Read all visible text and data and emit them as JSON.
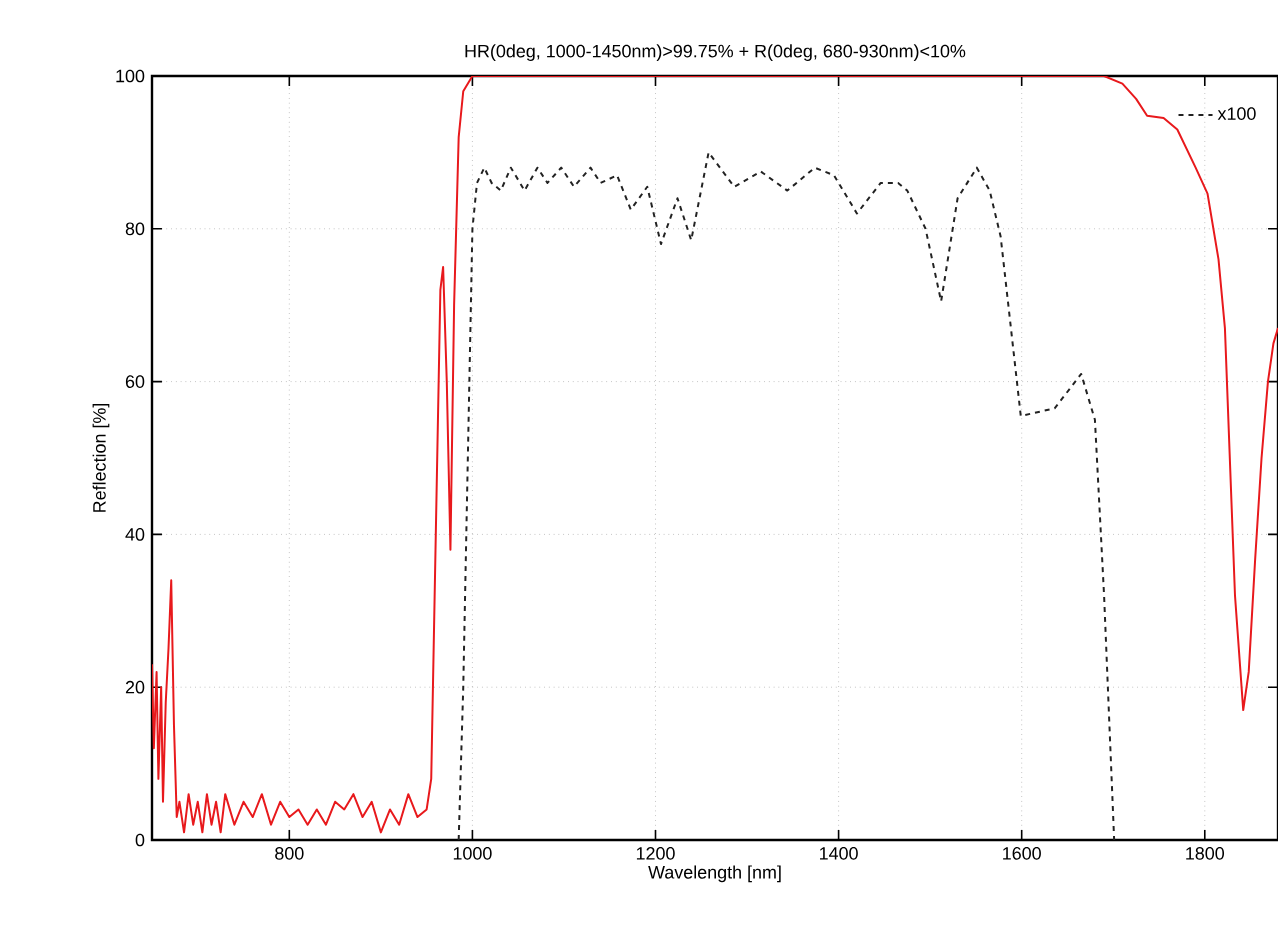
{
  "chart_data": {
    "type": "line",
    "title": "HR(0deg, 1000-1450nm)>99.75% + R(0deg, 680-930nm)<10%",
    "xlabel": "Wavelength [nm]",
    "ylabel": "Reflection [%]",
    "xlim": [
      650,
      1880
    ],
    "ylim": [
      0,
      100
    ],
    "xticks": [
      800,
      1000,
      1200,
      1400,
      1600,
      1800
    ],
    "yticks": [
      0,
      20,
      40,
      60,
      80,
      100
    ],
    "grid": true,
    "legend": "top right",
    "marker": "none",
    "series": [
      {
        "color": "#e8191c",
        "line_style": "solid",
        "x": [
          650,
          652,
          655,
          657,
          660,
          662,
          665,
          668,
          671,
          674,
          677,
          680,
          685,
          690,
          695,
          700,
          705,
          710,
          715,
          720,
          725,
          730,
          740,
          750,
          760,
          770,
          780,
          790,
          800,
          810,
          820,
          830,
          840,
          850,
          860,
          870,
          880,
          890,
          900,
          910,
          920,
          930,
          940,
          950,
          955,
          960,
          965,
          968,
          972,
          976,
          980,
          985,
          990,
          1000,
          1200,
          1400,
          1600,
          1690,
          1710,
          1725,
          1737,
          1755,
          1770,
          1790,
          1803,
          1815,
          1822,
          1833,
          1842,
          1848,
          1855,
          1862,
          1869,
          1875,
          1880
        ],
        "values": [
          23,
          12,
          22,
          8,
          20,
          5,
          18,
          25,
          34,
          15,
          3,
          5,
          1,
          6,
          2,
          5,
          1,
          6,
          2,
          5,
          1,
          6,
          2,
          5,
          3,
          6,
          2,
          5,
          3,
          4,
          2,
          4,
          2,
          5,
          4,
          6,
          3,
          5,
          1,
          4,
          2,
          6,
          3,
          4,
          8,
          40,
          72,
          75,
          60,
          38,
          70,
          92,
          98,
          100,
          100,
          100,
          100,
          100,
          99,
          97,
          94.8,
          94.5,
          93,
          88,
          84.6,
          76,
          67,
          32,
          17,
          22,
          36.7,
          50,
          60,
          65,
          67
        ]
      },
      {
        "name": "x100",
        "color": "#222222",
        "line_style": "dashed",
        "x": [
          985,
          990,
          995,
          1000,
          1005,
          1013,
          1021,
          1031,
          1042,
          1057,
          1071,
          1082,
          1097,
          1111,
          1129,
          1140,
          1158,
          1173,
          1191,
          1206,
          1224,
          1239,
          1258,
          1286,
          1315,
          1344,
          1374,
          1395,
          1420,
          1446,
          1465,
          1475,
          1495,
          1512,
          1530,
          1551,
          1565,
          1577,
          1599,
          1636,
          1665,
          1680,
          1690,
          1701
        ],
        "values": [
          0,
          20,
          50,
          80,
          86,
          88,
          86,
          85,
          88,
          85,
          88,
          86,
          88,
          85.5,
          88,
          86,
          87,
          82.5,
          85.5,
          78,
          84,
          78.5,
          90,
          85.5,
          87.5,
          85,
          88,
          87,
          82,
          86,
          86,
          85,
          80,
          70.5,
          84,
          88,
          85,
          79,
          55.5,
          56.5,
          61,
          55,
          32,
          0
        ]
      }
    ]
  }
}
